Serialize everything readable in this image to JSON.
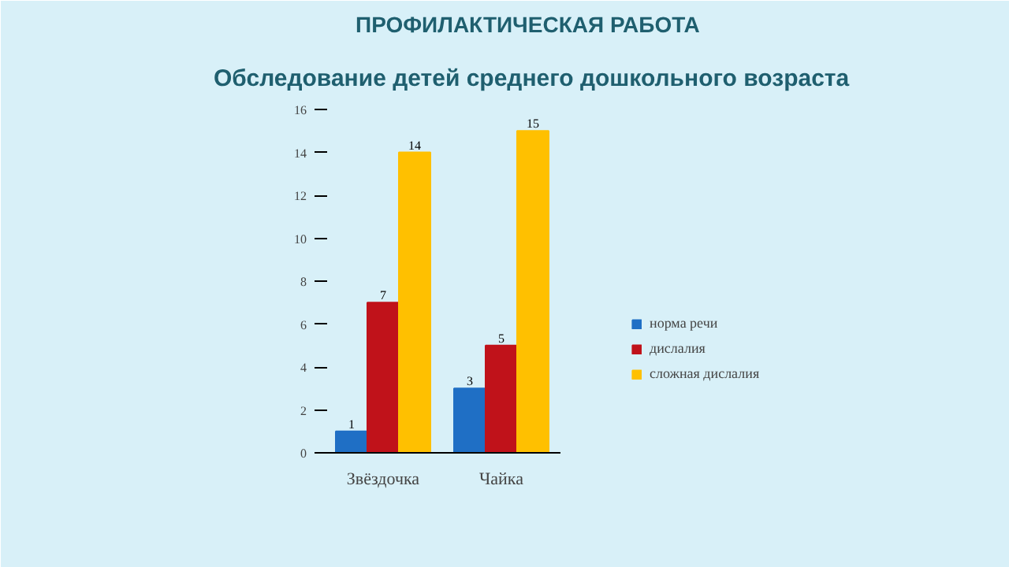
{
  "chart_data": {
    "type": "bar",
    "title": "ПРОФИЛАКТИЧЕСКАЯ РАБОТА",
    "subtitle": "Обследование детей среднего дошкольного возраста",
    "categories": [
      "Звёздочка",
      "Чайка"
    ],
    "series": [
      {
        "name": "норма речи",
        "color": "#1f6fc5",
        "values": [
          1,
          3
        ]
      },
      {
        "name": "дислалия",
        "color": "#c0121a",
        "values": [
          7,
          5
        ]
      },
      {
        "name": "сложная дислалия",
        "color": "#ffc000",
        "values": [
          14,
          15
        ]
      }
    ],
    "ylim": [
      0,
      16
    ],
    "yticks": [
      0,
      2,
      4,
      6,
      8,
      10,
      12,
      14,
      16
    ],
    "grid": false,
    "legend": "right",
    "data_labels": true
  }
}
